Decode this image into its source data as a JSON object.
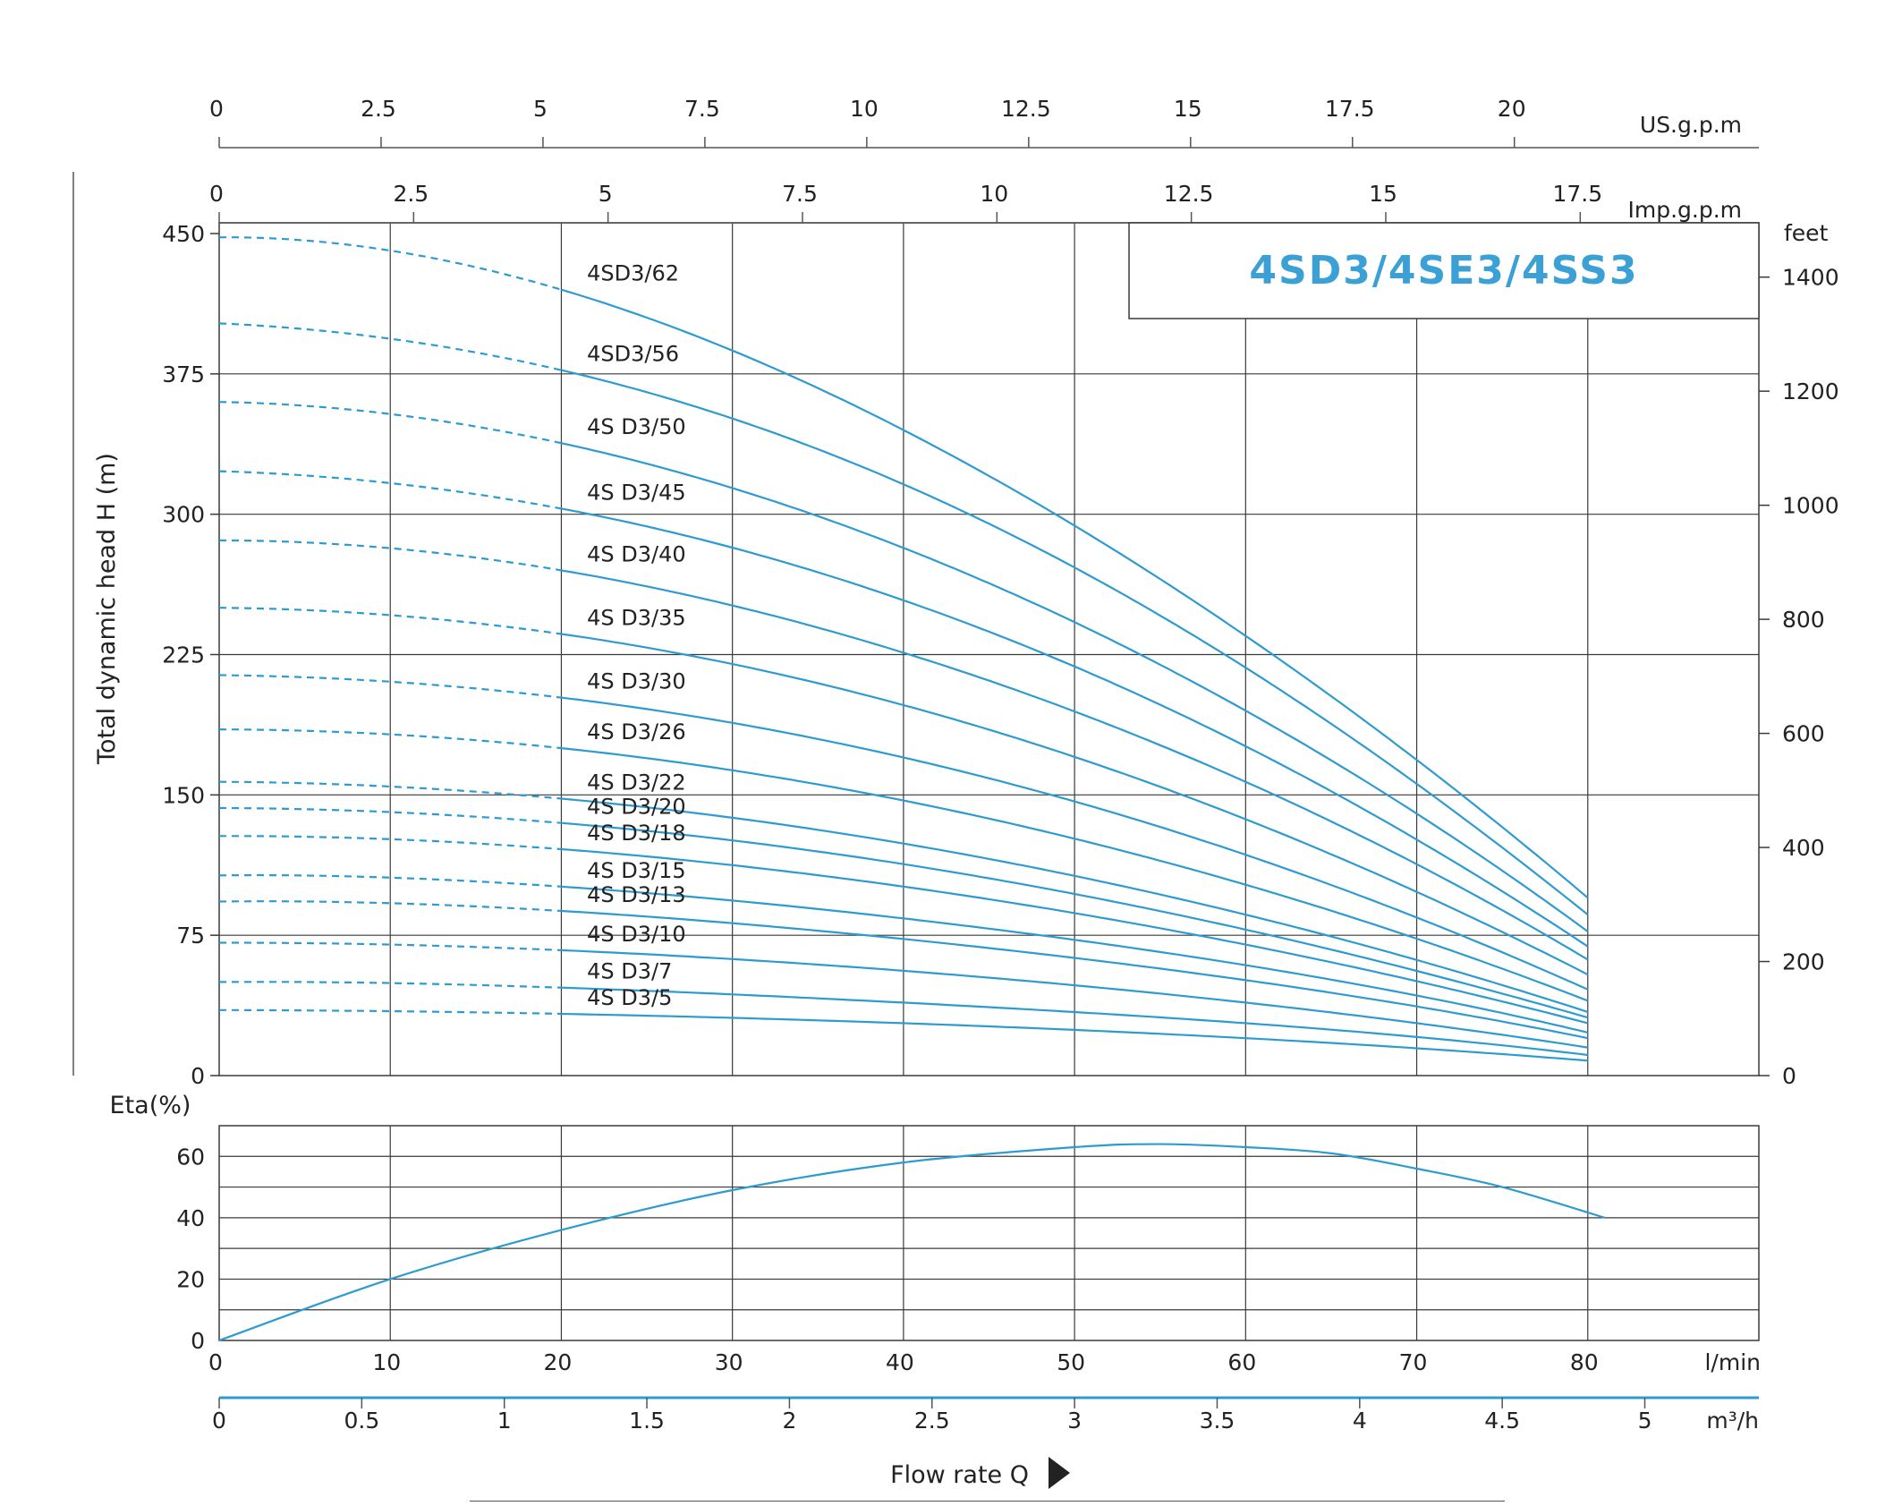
{
  "chart_data": {
    "type": "line",
    "title": "4SD3/4SE3/4SS3",
    "colors": {
      "curve": "#2e9bd0",
      "grid": "#3a3a3a",
      "text": "#222222",
      "badge": "#3aa0d6"
    },
    "head_chart": {
      "ylabel": "Total dynamic head H (m)",
      "ylim": [
        0,
        450
      ],
      "y_ticks": [
        "0",
        "75",
        "150",
        "225",
        "300",
        "375",
        "450"
      ],
      "right_axis_unit": "feet",
      "right_ticks": [
        "0",
        "200",
        "400",
        "600",
        "800",
        "1000",
        "1200",
        "1400"
      ],
      "top_axis_usgpm": {
        "unit": "US.g.p.m",
        "ticks": [
          "0",
          "2.5",
          "5",
          "7.5",
          "10",
          "12.5",
          "15",
          "17.5",
          "20"
        ]
      },
      "top_axis_impgpm": {
        "unit": "Imp.g.p.m",
        "ticks": [
          "0",
          "2.5",
          "5",
          "7.5",
          "10",
          "12.5",
          "15",
          "17.5"
        ]
      },
      "x_range_lmin": [
        0,
        90
      ],
      "dashed_until_lmin": 20,
      "curve_end_lmin": 80,
      "series": [
        {
          "name": "4SD3/62",
          "q": [
            0,
            20,
            40,
            60,
            80
          ],
          "h": [
            448,
            420,
            345,
            235,
            95
          ]
        },
        {
          "name": "4SD3/56",
          "q": [
            0,
            20,
            40,
            60,
            80
          ],
          "h": [
            402,
            377,
            316,
            218,
            86
          ]
        },
        {
          "name": "4S D3/50",
          "q": [
            0,
            20,
            40,
            60,
            80
          ],
          "h": [
            360,
            338,
            282,
            195,
            77
          ]
        },
        {
          "name": "4S D3/45",
          "q": [
            0,
            20,
            40,
            60,
            80
          ],
          "h": [
            323,
            303,
            254,
            176,
            69
          ]
        },
        {
          "name": "4S D3/40",
          "q": [
            0,
            20,
            40,
            60,
            80
          ],
          "h": [
            286,
            270,
            226,
            157,
            62
          ]
        },
        {
          "name": "4S D3/35",
          "q": [
            0,
            20,
            40,
            60,
            80
          ],
          "h": [
            250,
            236,
            198,
            137,
            54
          ]
        },
        {
          "name": "4S D3/30",
          "q": [
            0,
            20,
            40,
            60,
            80
          ],
          "h": [
            214,
            202,
            170,
            118,
            46
          ]
        },
        {
          "name": "4S D3/26",
          "q": [
            0,
            20,
            40,
            60,
            80
          ],
          "h": [
            185,
            175,
            147,
            102,
            40
          ]
        },
        {
          "name": "4S D3/22",
          "q": [
            0,
            20,
            40,
            60,
            80
          ],
          "h": [
            157,
            148,
            124,
            86,
            34
          ]
        },
        {
          "name": "4S D3/20",
          "q": [
            0,
            20,
            40,
            60,
            80
          ],
          "h": [
            143,
            135,
            113,
            78,
            31
          ]
        },
        {
          "name": "4S D3/18",
          "q": [
            0,
            20,
            40,
            60,
            80
          ],
          "h": [
            128,
            121,
            101,
            70,
            28
          ]
        },
        {
          "name": "4S D3/15",
          "q": [
            0,
            20,
            40,
            60,
            80
          ],
          "h": [
            107,
            101,
            84,
            59,
            23
          ]
        },
        {
          "name": "4S D3/13",
          "q": [
            0,
            20,
            40,
            60,
            80
          ],
          "h": [
            93,
            88,
            73,
            51,
            20
          ]
        },
        {
          "name": "4S D3/10",
          "q": [
            0,
            20,
            40,
            60,
            80
          ],
          "h": [
            71,
            67,
            56,
            39,
            15
          ]
        },
        {
          "name": "4S D3/7",
          "q": [
            0,
            20,
            40,
            60,
            80
          ],
          "h": [
            50,
            47,
            39,
            28,
            11
          ]
        },
        {
          "name": "4S D3/5",
          "q": [
            0,
            20,
            40,
            60,
            80
          ],
          "h": [
            35,
            33,
            28,
            20,
            8
          ]
        }
      ]
    },
    "efficiency_chart": {
      "ylabel": "Eta(%)",
      "ylim": [
        0,
        70
      ],
      "y_ticks": [
        "0",
        "20",
        "40",
        "60"
      ],
      "series": {
        "q": [
          0,
          10,
          20,
          30,
          40,
          50,
          55,
          60,
          65,
          70,
          75,
          81
        ],
        "eta": [
          0,
          20,
          36,
          49,
          58,
          63,
          64,
          63,
          61,
          56,
          50,
          40
        ]
      }
    },
    "bottom_axes": {
      "lmin": {
        "unit": "l/min",
        "ticks": [
          "0",
          "10",
          "20",
          "30",
          "40",
          "50",
          "60",
          "70",
          "80"
        ]
      },
      "m3h": {
        "unit": "m³/h",
        "ticks": [
          "0",
          "0.5",
          "1",
          "1.5",
          "2",
          "2.5",
          "3",
          "3.5",
          "4",
          "4.5",
          "5"
        ]
      }
    },
    "xlabel": "Flow rate Q"
  }
}
